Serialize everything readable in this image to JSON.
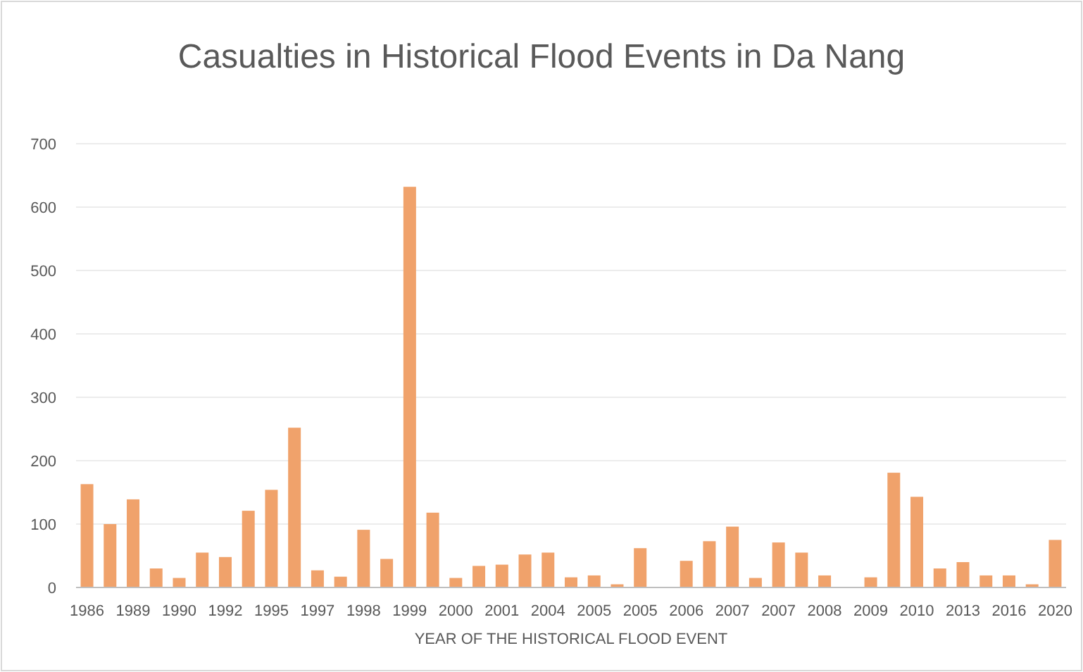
{
  "chart_data": {
    "type": "bar",
    "title": "Casualties in Historical Flood Events in Da Nang",
    "xlabel": "YEAR OF THE HISTORICAL FLOOD EVENT",
    "categories": [
      "1986",
      null,
      "1989",
      null,
      "1990",
      null,
      "1992",
      null,
      "1995",
      null,
      "1997",
      null,
      "1998",
      null,
      "1999",
      null,
      "2000",
      null,
      "2001",
      null,
      "2004",
      null,
      "2005",
      null,
      "2005",
      null,
      "2006",
      null,
      "2007",
      null,
      "2007",
      null,
      "2008",
      null,
      "2009",
      null,
      "2010",
      null,
      "2013",
      null,
      "2016",
      null,
      "2020"
    ],
    "values": [
      163,
      100,
      139,
      30,
      15,
      55,
      48,
      121,
      154,
      252,
      27,
      17,
      91,
      45,
      632,
      118,
      15,
      34,
      36,
      52,
      55,
      16,
      19,
      5,
      62,
      null,
      42,
      73,
      96,
      15,
      71,
      55,
      19,
      null,
      16,
      181,
      143,
      30,
      40,
      19,
      19,
      5,
      75
    ],
    "color": "#f0a26b",
    "ylim": [
      0,
      700
    ],
    "yticks": [
      0,
      100,
      200,
      300,
      400,
      500,
      600,
      700
    ],
    "grid": "y"
  }
}
